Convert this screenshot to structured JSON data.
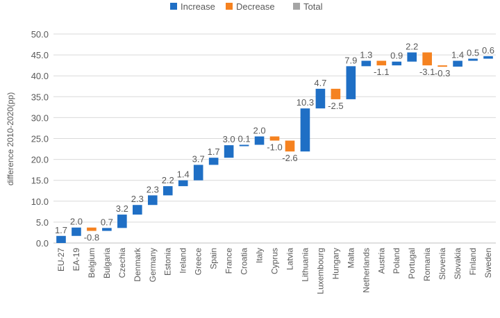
{
  "chart_data": {
    "type": "waterfall",
    "title": "",
    "xlabel": "",
    "ylabel": "difference 2010-2020(pp)",
    "ylim": [
      0,
      50
    ],
    "yticks": [
      "0.0",
      "5.0",
      "10.0",
      "15.0",
      "20.0",
      "25.0",
      "30.0",
      "35.0",
      "40.0",
      "45.0",
      "50.0"
    ],
    "grid": true,
    "legend_position": "top",
    "legend": [
      {
        "name": "Increase",
        "color": "#1f6fc5"
      },
      {
        "name": "Decrease",
        "color": "#f58220"
      },
      {
        "name": "Total",
        "color": "#a5a5a5"
      }
    ],
    "categories": [
      "EU-27",
      "EA-19",
      "Belgium",
      "Bulgaria",
      "Czechia",
      "Denmark",
      "Germany",
      "Estonia",
      "Ireland",
      "Greece",
      "Spain",
      "France",
      "Croatia",
      "Italy",
      "Cyprus",
      "Latvia",
      "Lithuania",
      "Luxembourg",
      "Hungary",
      "Malta",
      "Netherlands",
      "Austria",
      "Poland",
      "Portugal",
      "Romania",
      "Slovenia",
      "Slovakia",
      "Finland",
      "Sweden"
    ],
    "values": [
      1.7,
      2.0,
      -0.8,
      0.7,
      3.2,
      2.3,
      2.3,
      2.2,
      1.4,
      3.7,
      1.7,
      3.0,
      0.1,
      2.0,
      -1.0,
      -2.6,
      10.3,
      4.7,
      -2.5,
      7.9,
      1.3,
      -1.1,
      0.9,
      2.2,
      -3.1,
      -0.3,
      1.4,
      0.5,
      0.6
    ]
  }
}
